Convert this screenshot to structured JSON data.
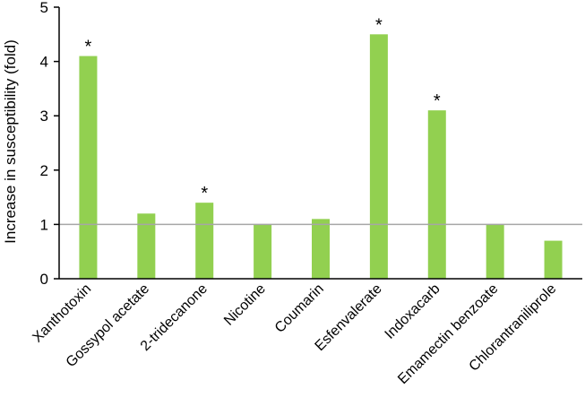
{
  "chart_data": {
    "type": "bar",
    "categories": [
      "Xanthotoxin",
      "Gossypol acetate",
      "2-tridecanone",
      "Nicotine",
      "Coumarin",
      "Esfenvalerate",
      "Indoxacarb",
      "Emamectin benzoate",
      "Chlorantraniliprole"
    ],
    "values": [
      4.1,
      1.2,
      1.4,
      1.0,
      1.1,
      4.5,
      3.1,
      1.0,
      0.7
    ],
    "significant": [
      true,
      false,
      true,
      false,
      false,
      true,
      true,
      false,
      false
    ],
    "significance_marker": "*",
    "ylabel": "Increase in susceptibility (fold)",
    "xlabel": "",
    "ylim": [
      0,
      5
    ],
    "yticks": [
      0,
      1,
      2,
      3,
      4,
      5
    ],
    "reference_line": 1,
    "grid": false,
    "bar_color": "#92d050",
    "reference_line_color": "#a6a6a6"
  }
}
